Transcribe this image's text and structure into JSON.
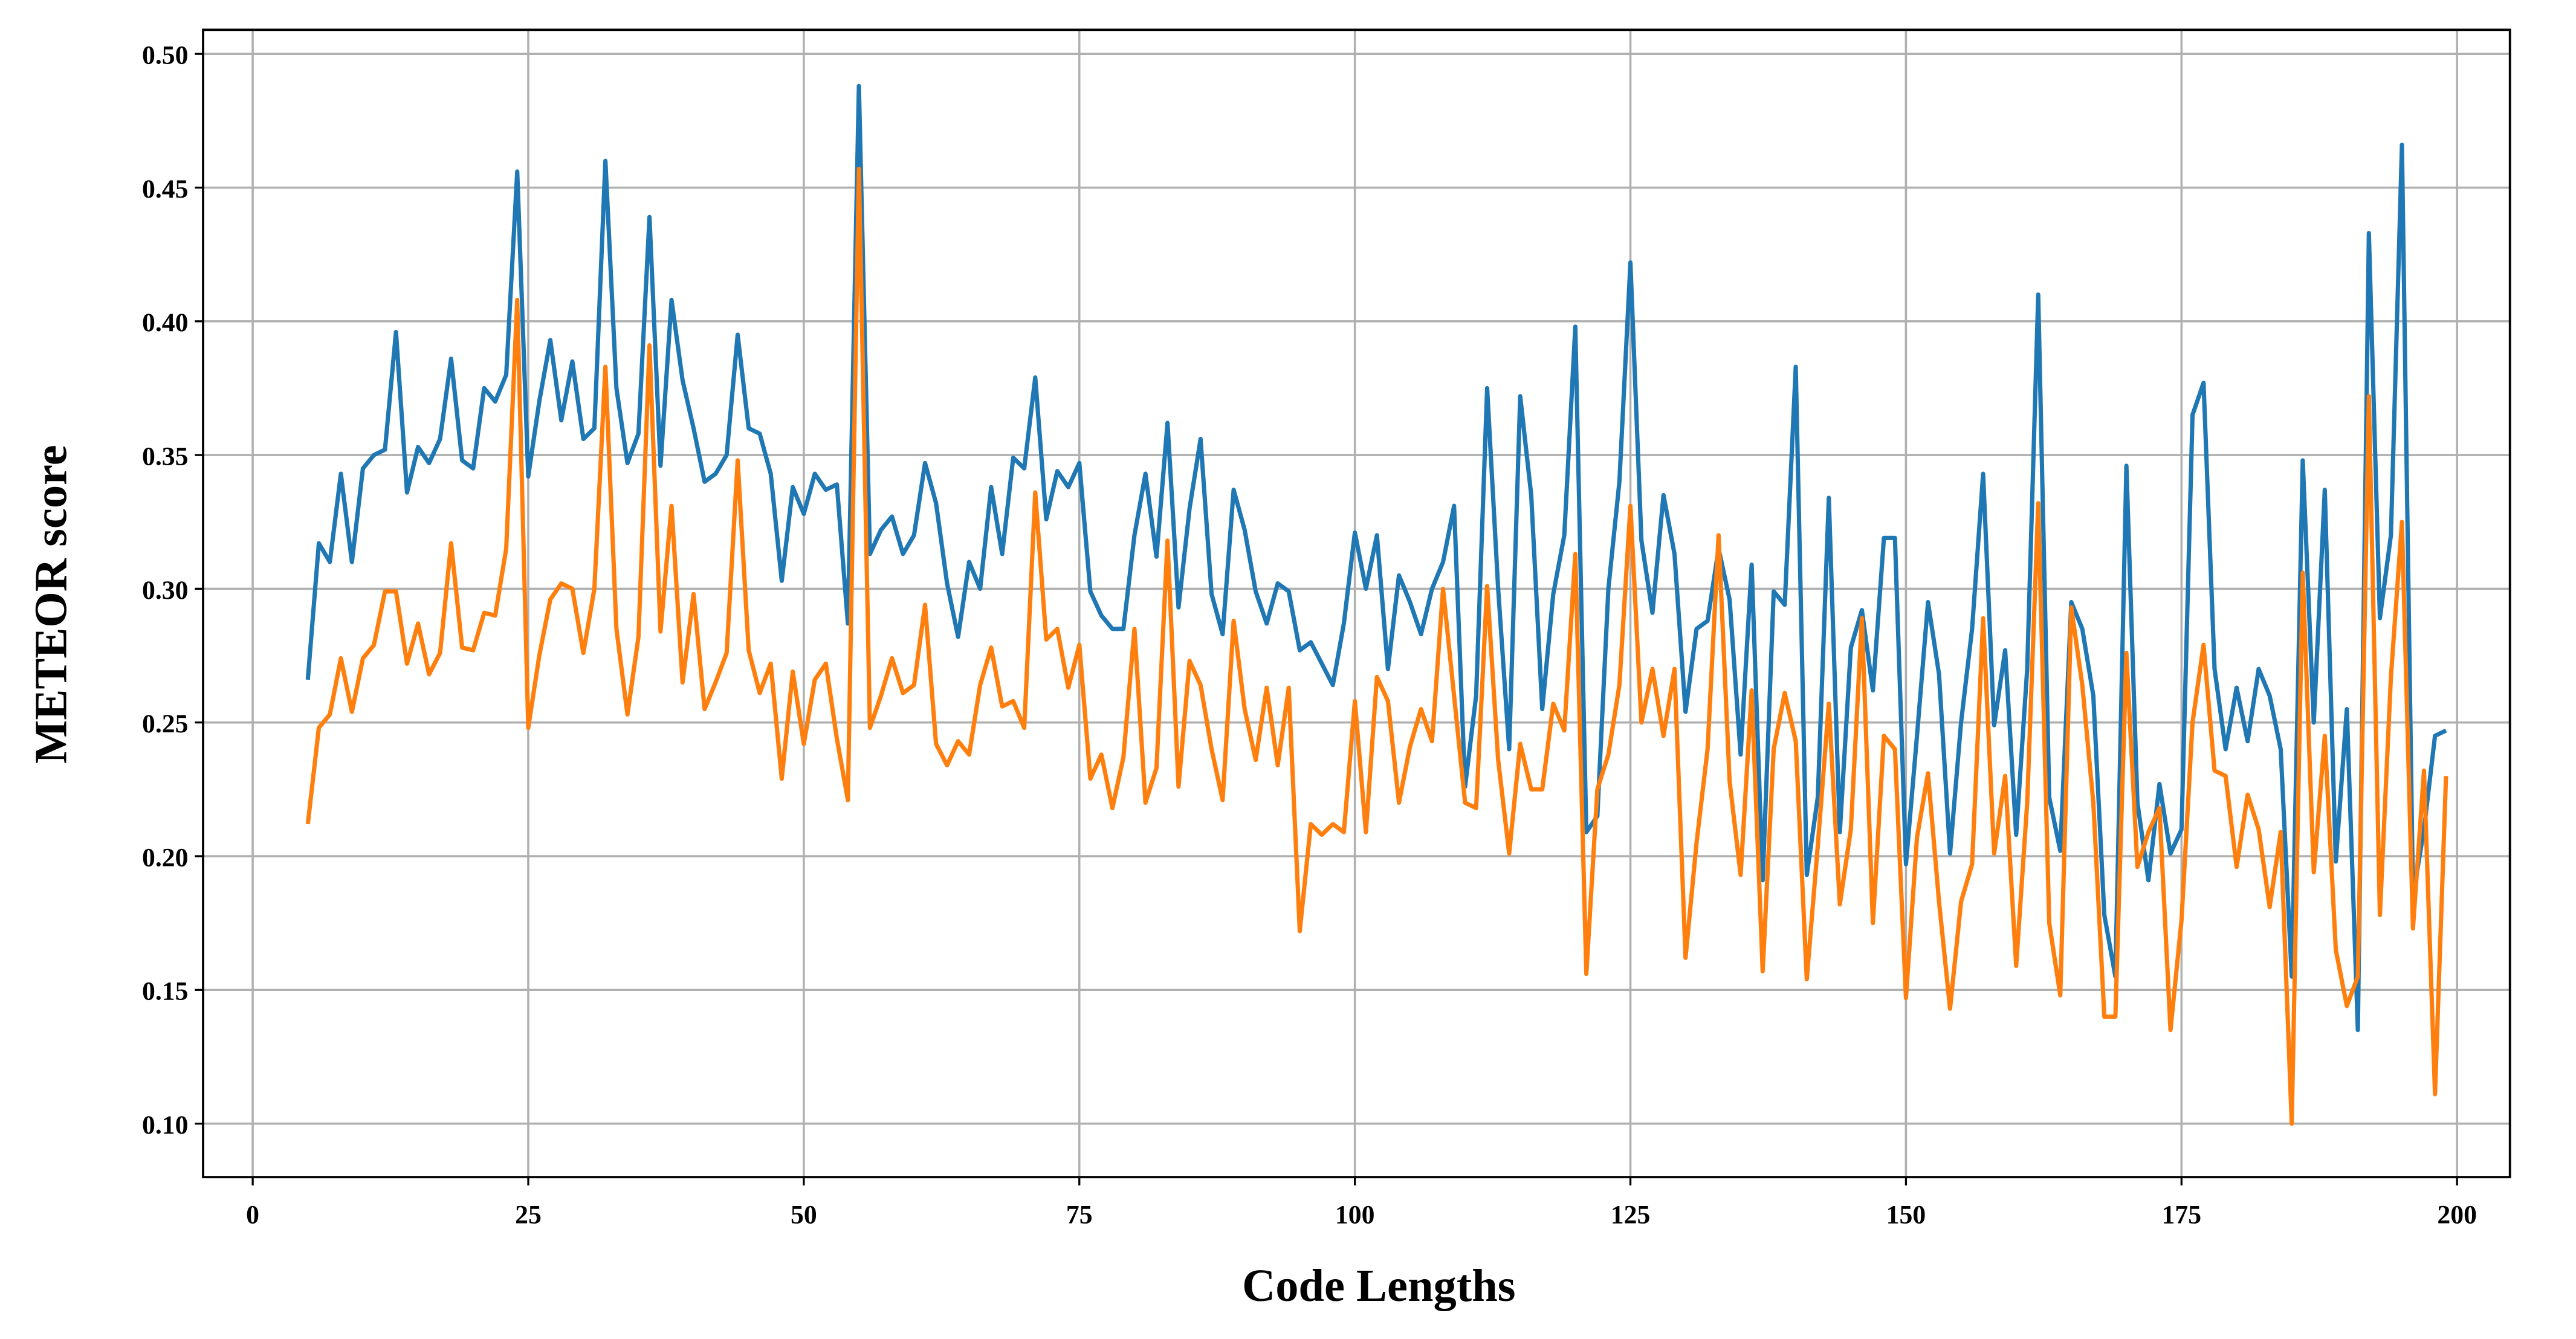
{
  "chart_data": {
    "type": "line",
    "xlabel": "Code Lengths",
    "ylabel": "METEOR score",
    "x": [
      5,
      6,
      7,
      8,
      9,
      10,
      11,
      12,
      13,
      14,
      15,
      16,
      17,
      18,
      19,
      20,
      21,
      22,
      23,
      24,
      25,
      26,
      27,
      28,
      29,
      30,
      31,
      32,
      33,
      34,
      35,
      36,
      37,
      38,
      39,
      40,
      41,
      42,
      43,
      44,
      45,
      46,
      47,
      48,
      49,
      50,
      51,
      52,
      53,
      54,
      55,
      56,
      57,
      58,
      59,
      60,
      61,
      62,
      63,
      64,
      65,
      66,
      67,
      68,
      69,
      70,
      71,
      72,
      73,
      74,
      75,
      76,
      77,
      78,
      79,
      80,
      81,
      82,
      83,
      84,
      85,
      86,
      87,
      88,
      89,
      90,
      91,
      92,
      93,
      94,
      95,
      96,
      97,
      98,
      99,
      100,
      101,
      102,
      103,
      104,
      105,
      106,
      107,
      108,
      109,
      110,
      111,
      112,
      113,
      114,
      115,
      116,
      117,
      118,
      119,
      120,
      121,
      122,
      123,
      124,
      125,
      126,
      127,
      128,
      129,
      130,
      131,
      132,
      133,
      134,
      135,
      136,
      137,
      138,
      139,
      140,
      141,
      142,
      143,
      144,
      145,
      146,
      147,
      148,
      149,
      150,
      151,
      152,
      153,
      154,
      155,
      156,
      157,
      158,
      159,
      160,
      161,
      162,
      163,
      164,
      165,
      166,
      167,
      168,
      169,
      170,
      171,
      172,
      173,
      174,
      175,
      176,
      177,
      178,
      179,
      180,
      181,
      182,
      183,
      184,
      185,
      186,
      187,
      188,
      189,
      190,
      191,
      192,
      193,
      194,
      195,
      196,
      197,
      198,
      199
    ],
    "series": [
      {
        "color": "#1f77b4",
        "values": [
          0.266,
          0.317,
          0.31,
          0.343,
          0.31,
          0.345,
          0.35,
          0.352,
          0.396,
          0.336,
          0.353,
          0.347,
          0.356,
          0.386,
          0.348,
          0.345,
          0.375,
          0.37,
          0.38,
          0.456,
          0.342,
          0.37,
          0.393,
          0.363,
          0.385,
          0.356,
          0.36,
          0.46,
          0.375,
          0.347,
          0.358,
          0.439,
          0.346,
          0.408,
          0.378,
          0.36,
          0.34,
          0.343,
          0.35,
          0.395,
          0.36,
          0.358,
          0.343,
          0.303,
          0.338,
          0.328,
          0.343,
          0.337,
          0.339,
          0.287,
          0.488,
          0.313,
          0.322,
          0.327,
          0.313,
          0.32,
          0.347,
          0.332,
          0.302,
          0.282,
          0.31,
          0.3,
          0.338,
          0.313,
          0.349,
          0.345,
          0.379,
          0.326,
          0.344,
          0.338,
          0.347,
          0.299,
          0.29,
          0.285,
          0.285,
          0.32,
          0.343,
          0.312,
          0.362,
          0.293,
          0.33,
          0.356,
          0.298,
          0.283,
          0.337,
          0.322,
          0.299,
          0.287,
          0.302,
          0.299,
          0.277,
          0.28,
          0.272,
          0.264,
          0.287,
          0.321,
          0.3,
          0.32,
          0.27,
          0.305,
          0.295,
          0.283,
          0.3,
          0.31,
          0.331,
          0.226,
          0.26,
          0.375,
          0.3,
          0.24,
          0.372,
          0.335,
          0.255,
          0.298,
          0.32,
          0.398,
          0.209,
          0.215,
          0.3,
          0.34,
          0.422,
          0.318,
          0.291,
          0.335,
          0.313,
          0.254,
          0.285,
          0.288,
          0.315,
          0.296,
          0.238,
          0.309,
          0.191,
          0.299,
          0.294,
          0.383,
          0.193,
          0.222,
          0.334,
          0.209,
          0.278,
          0.292,
          0.262,
          0.319,
          0.319,
          0.197,
          0.245,
          0.295,
          0.268,
          0.201,
          0.25,
          0.285,
          0.343,
          0.249,
          0.277,
          0.208,
          0.27,
          0.41,
          0.222,
          0.202,
          0.295,
          0.285,
          0.26,
          0.178,
          0.155,
          0.346,
          0.22,
          0.191,
          0.227,
          0.201,
          0.21,
          0.365,
          0.377,
          0.27,
          0.24,
          0.263,
          0.243,
          0.27,
          0.26,
          0.24,
          0.155,
          0.348,
          0.25,
          0.337,
          0.198,
          0.255,
          0.135,
          0.433,
          0.289,
          0.32,
          0.466,
          0.185,
          0.21,
          0.245,
          0.247
        ]
      },
      {
        "color": "#ff7f0e",
        "values": [
          0.212,
          0.248,
          0.253,
          0.274,
          0.254,
          0.274,
          0.279,
          0.299,
          0.299,
          0.272,
          0.287,
          0.268,
          0.276,
          0.317,
          0.278,
          0.277,
          0.291,
          0.29,
          0.315,
          0.408,
          0.248,
          0.275,
          0.296,
          0.302,
          0.3,
          0.276,
          0.3,
          0.383,
          0.285,
          0.253,
          0.282,
          0.391,
          0.284,
          0.331,
          0.265,
          0.298,
          0.255,
          0.265,
          0.276,
          0.348,
          0.277,
          0.261,
          0.272,
          0.229,
          0.269,
          0.242,
          0.266,
          0.272,
          0.244,
          0.221,
          0.457,
          0.248,
          0.26,
          0.274,
          0.261,
          0.264,
          0.294,
          0.242,
          0.234,
          0.243,
          0.238,
          0.264,
          0.278,
          0.256,
          0.258,
          0.248,
          0.336,
          0.281,
          0.285,
          0.263,
          0.279,
          0.229,
          0.238,
          0.218,
          0.237,
          0.285,
          0.22,
          0.233,
          0.318,
          0.226,
          0.273,
          0.264,
          0.24,
          0.221,
          0.288,
          0.255,
          0.236,
          0.263,
          0.234,
          0.263,
          0.172,
          0.212,
          0.208,
          0.212,
          0.209,
          0.258,
          0.209,
          0.267,
          0.258,
          0.22,
          0.241,
          0.255,
          0.243,
          0.3,
          0.26,
          0.22,
          0.218,
          0.301,
          0.236,
          0.201,
          0.242,
          0.225,
          0.225,
          0.257,
          0.247,
          0.313,
          0.156,
          0.225,
          0.238,
          0.264,
          0.331,
          0.25,
          0.27,
          0.245,
          0.27,
          0.162,
          0.205,
          0.24,
          0.32,
          0.228,
          0.193,
          0.262,
          0.157,
          0.24,
          0.261,
          0.243,
          0.154,
          0.204,
          0.257,
          0.182,
          0.21,
          0.289,
          0.175,
          0.245,
          0.24,
          0.147,
          0.207,
          0.231,
          0.183,
          0.143,
          0.183,
          0.197,
          0.289,
          0.201,
          0.23,
          0.159,
          0.22,
          0.332,
          0.175,
          0.148,
          0.293,
          0.264,
          0.22,
          0.14,
          0.14,
          0.276,
          0.196,
          0.209,
          0.218,
          0.135,
          0.176,
          0.25,
          0.279,
          0.232,
          0.23,
          0.196,
          0.223,
          0.21,
          0.181,
          0.209,
          0.1,
          0.306,
          0.194,
          0.245,
          0.165,
          0.144,
          0.155,
          0.372,
          0.178,
          0.267,
          0.325,
          0.173,
          0.232,
          0.111,
          0.23
        ]
      }
    ],
    "xlim": [
      -4.5,
      204.8
    ],
    "xticks": [
      0,
      25,
      50,
      75,
      100,
      125,
      150,
      175,
      200
    ],
    "ylim": [
      0.08,
      0.509
    ],
    "yticks": [
      {
        "value": 0.1,
        "label": "0.10"
      },
      {
        "value": 0.15,
        "label": "0.15"
      },
      {
        "value": 0.2,
        "label": "0.20"
      },
      {
        "value": 0.25,
        "label": "0.25"
      },
      {
        "value": 0.3,
        "label": "0.30"
      },
      {
        "value": 0.35,
        "label": "0.35"
      },
      {
        "value": 0.4,
        "label": "0.40"
      },
      {
        "value": 0.45,
        "label": "0.45"
      },
      {
        "value": 0.5,
        "label": "0.50"
      }
    ],
    "grid": true
  }
}
